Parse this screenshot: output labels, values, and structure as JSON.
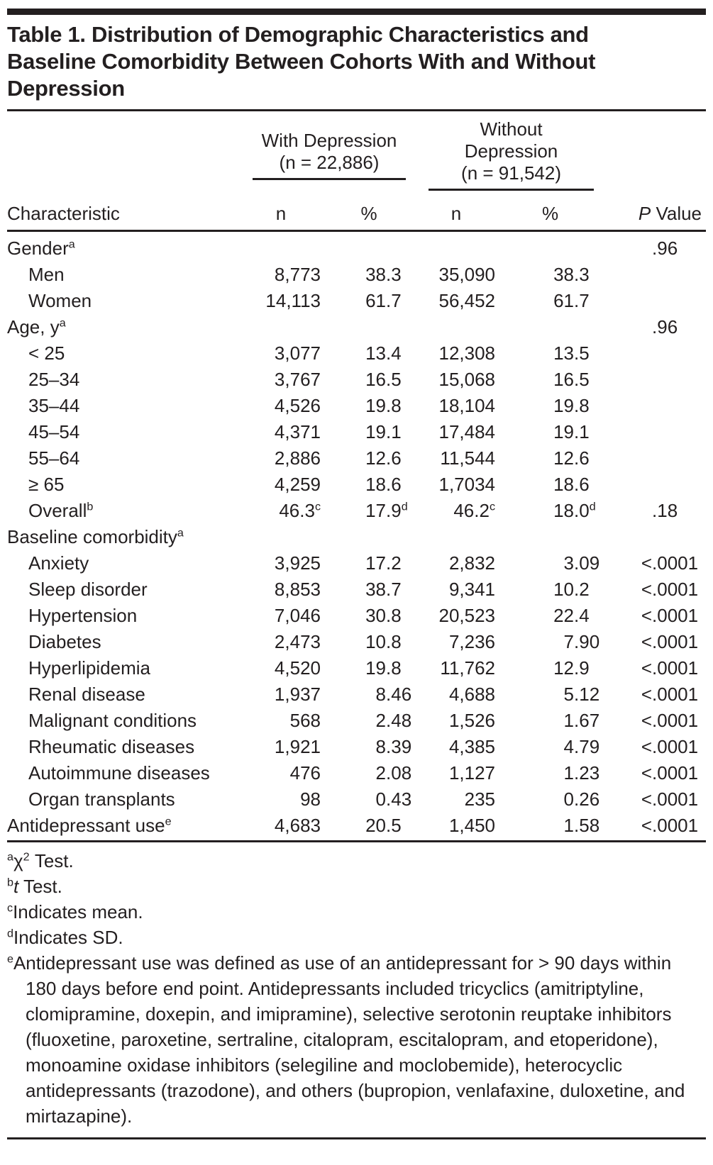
{
  "title": {
    "lines": [
      "Table 1. Distribution of Demographic Characteristics and",
      "Baseline Comorbidity Between Cohorts With and Without",
      "Depression"
    ]
  },
  "table": {
    "characteristic_header": "Characteristic",
    "group1": {
      "lines": [
        "With Depression",
        "(n = 22,886)"
      ]
    },
    "group2": {
      "lines": [
        "Without",
        "Depression",
        "(n = 91,542)"
      ]
    },
    "subheaders": [
      "n",
      "%",
      "n",
      "%"
    ],
    "p_header": "*P* Value",
    "rows": [
      {
        "label": "Gender^a",
        "indent": false,
        "cells": [
          "",
          "",
          "",
          "",
          ".96"
        ]
      },
      {
        "label": "Men",
        "indent": true,
        "cells": [
          "8,773",
          "38.3",
          "35,090",
          "38.3",
          ""
        ]
      },
      {
        "label": "Women",
        "indent": true,
        "cells": [
          "14,113",
          "61.7",
          "56,452",
          "61.7",
          ""
        ]
      },
      {
        "label": "Age, y^a",
        "indent": false,
        "cells": [
          "",
          "",
          "",
          "",
          ".96"
        ]
      },
      {
        "label": "< 25",
        "indent": true,
        "cells": [
          "3,077",
          "13.4",
          "12,308",
          "13.5",
          ""
        ]
      },
      {
        "label": "25–34",
        "indent": true,
        "cells": [
          "3,767",
          "16.5",
          "15,068",
          "16.5",
          ""
        ]
      },
      {
        "label": "35–44",
        "indent": true,
        "cells": [
          "4,526",
          "19.8",
          "18,104",
          "19.8",
          ""
        ]
      },
      {
        "label": "45–54",
        "indent": true,
        "cells": [
          "4,371",
          "19.1",
          "17,484",
          "19.1",
          ""
        ]
      },
      {
        "label": "55–64",
        "indent": true,
        "cells": [
          "2,886",
          "12.6",
          "11,544",
          "12.6",
          ""
        ]
      },
      {
        "label": "≥ 65",
        "indent": true,
        "cells": [
          "4,259",
          "18.6",
          "1,7034",
          "18.6",
          ""
        ]
      },
      {
        "label": "Overall^b",
        "indent": true,
        "cells": [
          "46.3^c",
          "17.9^d",
          "46.2^c",
          "18.0^d",
          ".18"
        ]
      },
      {
        "label": "Baseline comorbidity^a",
        "indent": false,
        "cells": [
          "",
          "",
          "",
          "",
          ""
        ]
      },
      {
        "label": "Anxiety",
        "indent": true,
        "cells": [
          "3,925",
          "17.2",
          "2,832",
          "3.09",
          "<.0001"
        ]
      },
      {
        "label": "Sleep disorder",
        "indent": true,
        "cells": [
          "8,853",
          "38.7",
          "9,341",
          "10.2",
          "<.0001"
        ]
      },
      {
        "label": "Hypertension",
        "indent": true,
        "cells": [
          "7,046",
          "30.8",
          "20,523",
          "22.4",
          "<.0001"
        ]
      },
      {
        "label": "Diabetes",
        "indent": true,
        "cells": [
          "2,473",
          "10.8",
          "7,236",
          "7.90",
          "<.0001"
        ]
      },
      {
        "label": "Hyperlipidemia",
        "indent": true,
        "cells": [
          "4,520",
          "19.8",
          "11,762",
          "12.9",
          "<.0001"
        ]
      },
      {
        "label": "Renal disease",
        "indent": true,
        "cells": [
          "1,937",
          "8.46",
          "4,688",
          "5.12",
          "<.0001"
        ]
      },
      {
        "label": "Malignant conditions",
        "indent": true,
        "cells": [
          "568",
          "2.48",
          "1,526",
          "1.67",
          "<.0001"
        ]
      },
      {
        "label": "Rheumatic diseases",
        "indent": true,
        "cells": [
          "1,921",
          "8.39",
          "4,385",
          "4.79",
          "<.0001"
        ]
      },
      {
        "label": "Autoimmune diseases",
        "indent": true,
        "cells": [
          "476",
          "2.08",
          "1,127",
          "1.23",
          "<.0001"
        ]
      },
      {
        "label": "Organ transplants",
        "indent": true,
        "cells": [
          "98",
          "0.43",
          "235",
          "0.26",
          "<.0001"
        ]
      },
      {
        "label": "Antidepressant use^e",
        "indent": false,
        "cells": [
          "4,683",
          "20.5",
          "1,450",
          "1.58",
          "<.0001"
        ]
      }
    ]
  },
  "footnotes": [
    {
      "marker": "a",
      "text": "χ^2 Test."
    },
    {
      "marker": "b",
      "text": "*t* Test."
    },
    {
      "marker": "c",
      "text": "Indicates mean."
    },
    {
      "marker": "d",
      "text": "Indicates SD."
    },
    {
      "marker": "e",
      "text": "Antidepressant use was defined as use of an antidepressant for > 90 days within 180 days before end point. Antidepressants included tricyclics (amitriptyline, clomipramine, doxepin, and imipramine), selective serotonin reuptake inhibitors (fluoxetine, paroxetine, sertraline, citalopram, escitalopram, and etoperidone), monoamine oxidase inhibitors (selegiline and moclobemide), heterocyclic antidepressants (trazodone), and others (bupropion, venlafaxine, duloxetine, and mirtazapine)."
    }
  ]
}
